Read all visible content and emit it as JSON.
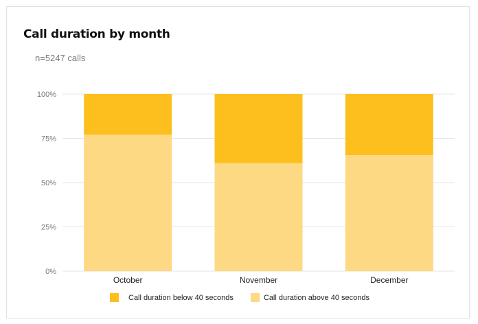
{
  "title": "Call duration by month",
  "subtitle": "n=5247 calls",
  "colors": {
    "below": "#fdbf1e",
    "above": "#fdd983",
    "grid": "#e4e4e4",
    "tick_text": "#777777"
  },
  "chart_data": {
    "type": "bar",
    "stacked": true,
    "categories": [
      "October",
      "November",
      "December"
    ],
    "series": [
      {
        "name": "Call duration above 40 seconds",
        "values": [
          77,
          61,
          65.5
        ],
        "color": "#fdd983"
      },
      {
        "name": "Call duration below 40 seconds",
        "values": [
          23,
          39,
          34.5
        ],
        "color": "#fdbf1e"
      }
    ],
    "yticks": [
      "0%",
      "25%",
      "50%",
      "75%",
      "100%"
    ],
    "ylim": [
      0,
      100
    ],
    "grid": true,
    "legend_position": "bottom"
  },
  "legend": [
    {
      "label": "Call duration below 40 seconds",
      "color": "#fdbf1e"
    },
    {
      "label": "Call duration above 40 seconds",
      "color": "#fdd983"
    }
  ]
}
